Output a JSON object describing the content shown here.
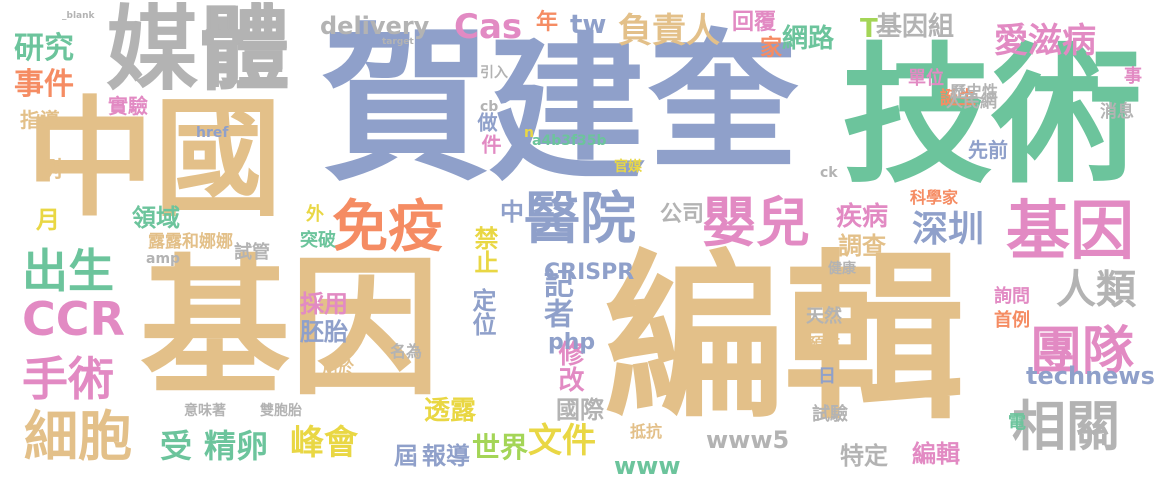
{
  "palette": {
    "tan": "#e3c089",
    "blue": "#8fa0ca",
    "green": "#6cc49c",
    "gray": "#b3b3b3",
    "pink": "#e28ac3",
    "orange": "#f58c63",
    "yellow": "#e9d744",
    "lime": "#a4d557"
  },
  "words": [
    "賀",
    "建",
    "奎",
    "技術",
    "編輯",
    "基因",
    "中國",
    "媒體",
    "體",
    "基因",
    "醫院",
    "免疫",
    "嬰兒",
    "團隊",
    "細胞",
    "相關",
    "人類",
    "深圳",
    "出生",
    "CCR",
    "手術",
    "研究",
    "事件",
    "愛滋病",
    "負責人",
    "Cas",
    "文件",
    "峰會",
    "世界",
    "受",
    "精卵",
    "記者",
    "technews",
    "CRISPR",
    "透露",
    "修改",
    "國際",
    "禁止",
    "定位",
    "疾病",
    "調查",
    "採用",
    "胚胎",
    "特定",
    "編輯",
    "屆",
    "報導",
    "www5",
    "www",
    "中",
    "公司",
    "php",
    "領域",
    "月",
    "露露和娜娜",
    "試管",
    "外",
    "突破",
    "試驗",
    "詢問",
    "首例",
    "天然",
    "單位",
    "誕生",
    "歷史性",
    "科學家",
    "人民網",
    "家",
    "網路",
    "年",
    "tw",
    "回覆",
    "先前",
    "基因組",
    "delivery",
    "a4b3f35b",
    "官媒",
    "做",
    "件",
    "實驗",
    "指導",
    "消息",
    "事",
    "日",
    "預防",
    "電",
    "抵抗",
    "用於",
    "名為",
    "雙胞胎",
    "意味著",
    "健康",
    "amp",
    "href",
    "cb",
    "n",
    "ck",
    "引入",
    "例",
    "_blank",
    "target",
    "T"
  ]
}
